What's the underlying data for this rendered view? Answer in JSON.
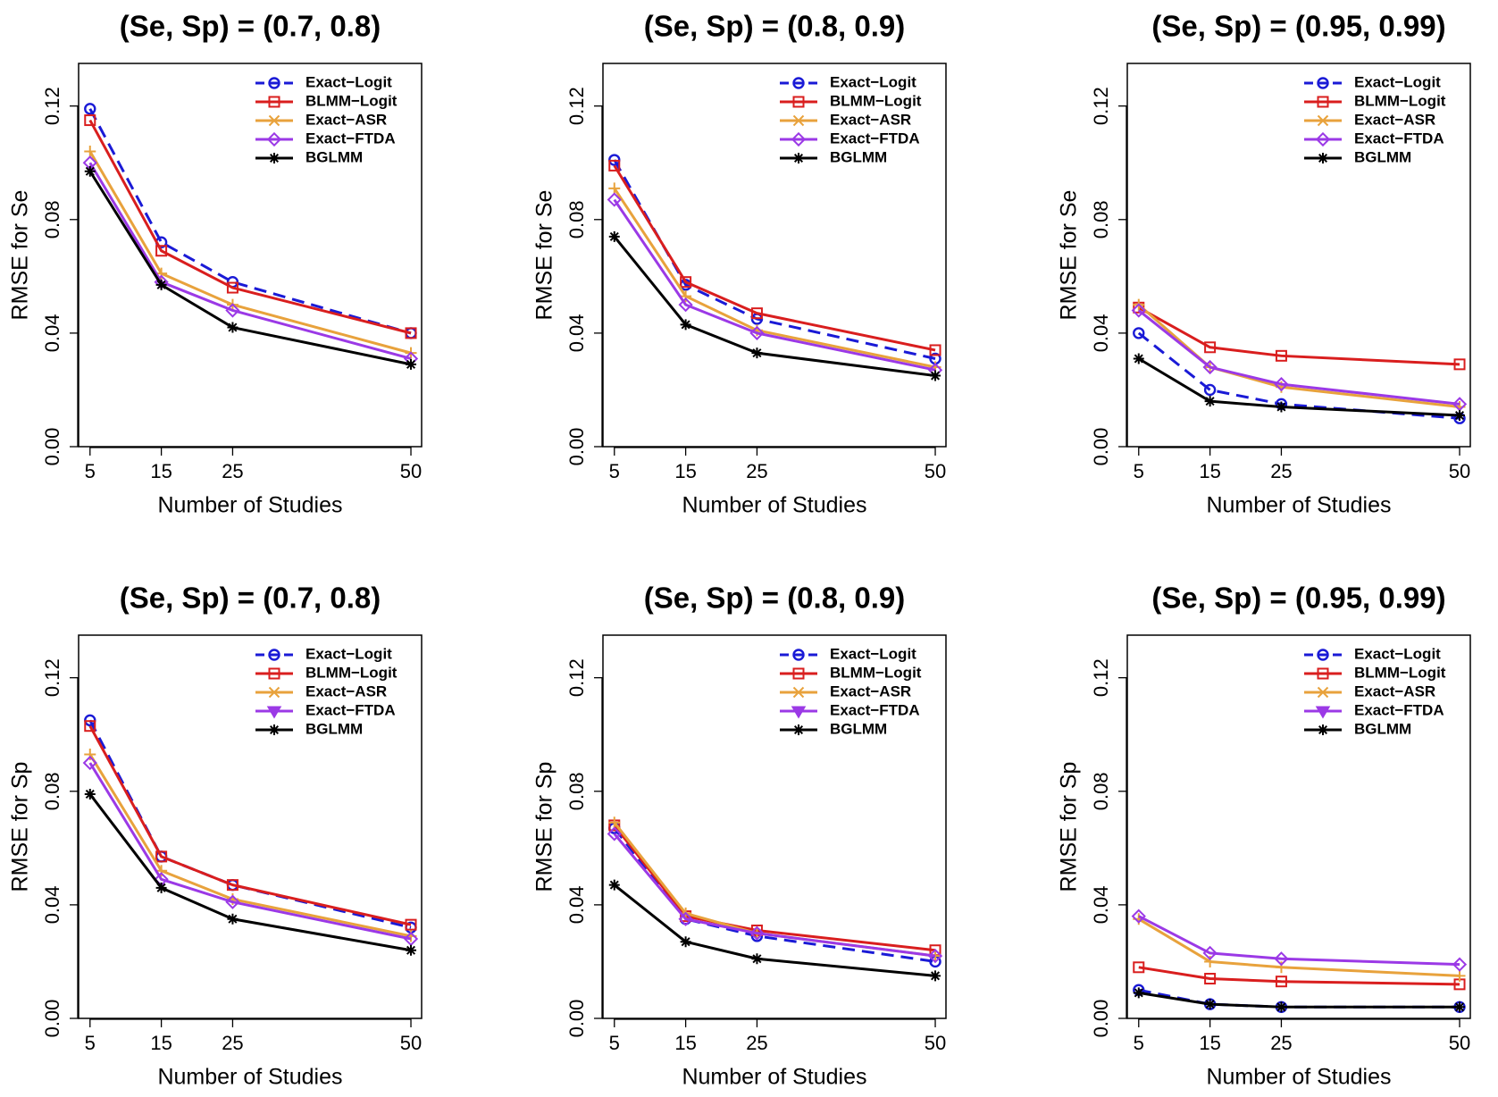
{
  "colors": {
    "exact_logit": "#1a1ad6",
    "blmm_logit": "#d91e1e",
    "exact_asr": "#e8a23c",
    "exact_ftda": "#9b39e6",
    "bglmm": "#000000"
  },
  "chart_data": [
    {
      "type": "line",
      "title": "(Se, Sp) = (0.7, 0.8)",
      "xlabel": "Number of Studies",
      "ylabel": "RMSE for Se",
      "x": [
        5,
        15,
        25,
        50
      ],
      "x_ticks": [
        "5",
        "15",
        "25",
        "50"
      ],
      "y_ticks": [
        "0.00",
        "0.04",
        "0.08",
        "0.12"
      ],
      "ylim": [
        0,
        0.135
      ],
      "legend_position": "top-right",
      "series": [
        {
          "name": "Exact−Logit",
          "color_key": "exact_logit",
          "dash": true,
          "marker": "circle",
          "legend_marker": "circle",
          "values": [
            0.119,
            0.072,
            0.058,
            0.04
          ]
        },
        {
          "name": "BLMM−Logit",
          "color_key": "blmm_logit",
          "dash": false,
          "marker": "square",
          "legend_marker": "square",
          "values": [
            0.115,
            0.069,
            0.056,
            0.04
          ]
        },
        {
          "name": "Exact−ASR",
          "color_key": "exact_asr",
          "dash": false,
          "marker": "plus",
          "legend_marker": "x",
          "values": [
            0.104,
            0.061,
            0.05,
            0.033
          ]
        },
        {
          "name": "Exact−FTDA",
          "color_key": "exact_ftda",
          "dash": false,
          "marker": "diamond",
          "legend_marker": "diamond",
          "values": [
            0.1,
            0.058,
            0.048,
            0.031
          ]
        },
        {
          "name": "BGLMM",
          "color_key": "bglmm",
          "dash": false,
          "marker": "star",
          "legend_marker": "star",
          "values": [
            0.097,
            0.057,
            0.042,
            0.029
          ]
        }
      ]
    },
    {
      "type": "line",
      "title": "(Se, Sp) = (0.8, 0.9)",
      "xlabel": "Number of Studies",
      "ylabel": "RMSE for Se",
      "x": [
        5,
        15,
        25,
        50
      ],
      "x_ticks": [
        "5",
        "15",
        "25",
        "50"
      ],
      "y_ticks": [
        "0.00",
        "0.04",
        "0.08",
        "0.12"
      ],
      "ylim": [
        0,
        0.135
      ],
      "legend_position": "top-right",
      "series": [
        {
          "name": "Exact−Logit",
          "color_key": "exact_logit",
          "dash": true,
          "marker": "circle",
          "legend_marker": "circle",
          "values": [
            0.101,
            0.057,
            0.045,
            0.031
          ]
        },
        {
          "name": "BLMM−Logit",
          "color_key": "blmm_logit",
          "dash": false,
          "marker": "square",
          "legend_marker": "square",
          "values": [
            0.099,
            0.058,
            0.047,
            0.034
          ]
        },
        {
          "name": "Exact−ASR",
          "color_key": "exact_asr",
          "dash": false,
          "marker": "plus",
          "legend_marker": "x",
          "values": [
            0.091,
            0.053,
            0.041,
            0.028
          ]
        },
        {
          "name": "Exact−FTDA",
          "color_key": "exact_ftda",
          "dash": false,
          "marker": "diamond",
          "legend_marker": "diamond",
          "values": [
            0.087,
            0.05,
            0.04,
            0.027
          ]
        },
        {
          "name": "BGLMM",
          "color_key": "bglmm",
          "dash": false,
          "marker": "star",
          "legend_marker": "star",
          "values": [
            0.074,
            0.043,
            0.033,
            0.025
          ]
        }
      ]
    },
    {
      "type": "line",
      "title": "(Se, Sp) = (0.95, 0.99)",
      "xlabel": "Number of Studies",
      "ylabel": "RMSE for Se",
      "x": [
        5,
        15,
        25,
        50
      ],
      "x_ticks": [
        "5",
        "15",
        "25",
        "50"
      ],
      "y_ticks": [
        "0.00",
        "0.04",
        "0.08",
        "0.12"
      ],
      "ylim": [
        0,
        0.135
      ],
      "legend_position": "top-right",
      "series": [
        {
          "name": "Exact−Logit",
          "color_key": "exact_logit",
          "dash": true,
          "marker": "circle",
          "legend_marker": "circle",
          "values": [
            0.04,
            0.02,
            0.015,
            0.01
          ]
        },
        {
          "name": "BLMM−Logit",
          "color_key": "blmm_logit",
          "dash": false,
          "marker": "square",
          "legend_marker": "square",
          "values": [
            0.049,
            0.035,
            0.032,
            0.029
          ]
        },
        {
          "name": "Exact−ASR",
          "color_key": "exact_asr",
          "dash": false,
          "marker": "plus",
          "legend_marker": "x",
          "values": [
            0.05,
            0.028,
            0.021,
            0.014
          ]
        },
        {
          "name": "Exact−FTDA",
          "color_key": "exact_ftda",
          "dash": false,
          "marker": "diamond",
          "legend_marker": "diamond",
          "values": [
            0.048,
            0.028,
            0.022,
            0.015
          ]
        },
        {
          "name": "BGLMM",
          "color_key": "bglmm",
          "dash": false,
          "marker": "star",
          "legend_marker": "star",
          "values": [
            0.031,
            0.016,
            0.014,
            0.011
          ]
        }
      ]
    },
    {
      "type": "line",
      "title": "(Se, Sp) = (0.7, 0.8)",
      "xlabel": "Number of Studies",
      "ylabel": "RMSE for Sp",
      "x": [
        5,
        15,
        25,
        50
      ],
      "x_ticks": [
        "5",
        "15",
        "25",
        "50"
      ],
      "y_ticks": [
        "0.00",
        "0.04",
        "0.08",
        "0.12"
      ],
      "ylim": [
        0,
        0.135
      ],
      "legend_position": "top-right",
      "series": [
        {
          "name": "Exact−Logit",
          "color_key": "exact_logit",
          "dash": true,
          "marker": "circle",
          "legend_marker": "circle",
          "values": [
            0.105,
            0.057,
            0.047,
            0.032
          ]
        },
        {
          "name": "BLMM−Logit",
          "color_key": "blmm_logit",
          "dash": false,
          "marker": "square",
          "legend_marker": "square",
          "values": [
            0.103,
            0.057,
            0.047,
            0.033
          ]
        },
        {
          "name": "Exact−ASR",
          "color_key": "exact_asr",
          "dash": false,
          "marker": "plus",
          "legend_marker": "x",
          "values": [
            0.093,
            0.052,
            0.042,
            0.029
          ]
        },
        {
          "name": "Exact−FTDA",
          "color_key": "exact_ftda",
          "dash": false,
          "marker": "diamond",
          "legend_marker": "triangle",
          "values": [
            0.09,
            0.049,
            0.041,
            0.028
          ]
        },
        {
          "name": "BGLMM",
          "color_key": "bglmm",
          "dash": false,
          "marker": "star",
          "legend_marker": "star",
          "values": [
            0.079,
            0.046,
            0.035,
            0.024
          ]
        }
      ]
    },
    {
      "type": "line",
      "title": "(Se, Sp) = (0.8, 0.9)",
      "xlabel": "Number of Studies",
      "ylabel": "RMSE for Sp",
      "x": [
        5,
        15,
        25,
        50
      ],
      "x_ticks": [
        "5",
        "15",
        "25",
        "50"
      ],
      "y_ticks": [
        "0.00",
        "0.04",
        "0.08",
        "0.12"
      ],
      "ylim": [
        0,
        0.135
      ],
      "legend_position": "top-right",
      "series": [
        {
          "name": "Exact−Logit",
          "color_key": "exact_logit",
          "dash": true,
          "marker": "circle",
          "legend_marker": "circle",
          "values": [
            0.067,
            0.035,
            0.029,
            0.02
          ]
        },
        {
          "name": "BLMM−Logit",
          "color_key": "blmm_logit",
          "dash": false,
          "marker": "square",
          "legend_marker": "square",
          "values": [
            0.068,
            0.036,
            0.031,
            0.024
          ]
        },
        {
          "name": "Exact−ASR",
          "color_key": "exact_asr",
          "dash": false,
          "marker": "plus",
          "legend_marker": "x",
          "values": [
            0.069,
            0.037,
            0.03,
            0.022
          ]
        },
        {
          "name": "Exact−FTDA",
          "color_key": "exact_ftda",
          "dash": false,
          "marker": "diamond",
          "legend_marker": "triangle",
          "values": [
            0.065,
            0.035,
            0.03,
            0.022
          ]
        },
        {
          "name": "BGLMM",
          "color_key": "bglmm",
          "dash": false,
          "marker": "star",
          "legend_marker": "star",
          "values": [
            0.047,
            0.027,
            0.021,
            0.015
          ]
        }
      ]
    },
    {
      "type": "line",
      "title": "(Se, Sp) = (0.95, 0.99)",
      "xlabel": "Number of Studies",
      "ylabel": "RMSE for Sp",
      "x": [
        5,
        15,
        25,
        50
      ],
      "x_ticks": [
        "5",
        "15",
        "25",
        "50"
      ],
      "y_ticks": [
        "0.00",
        "0.04",
        "0.08",
        "0.12"
      ],
      "ylim": [
        0,
        0.135
      ],
      "legend_position": "top-right",
      "series": [
        {
          "name": "Exact−Logit",
          "color_key": "exact_logit",
          "dash": true,
          "marker": "circle",
          "legend_marker": "circle",
          "values": [
            0.01,
            0.005,
            0.004,
            0.004
          ]
        },
        {
          "name": "BLMM−Logit",
          "color_key": "blmm_logit",
          "dash": false,
          "marker": "square",
          "legend_marker": "square",
          "values": [
            0.018,
            0.014,
            0.013,
            0.012
          ]
        },
        {
          "name": "Exact−ASR",
          "color_key": "exact_asr",
          "dash": false,
          "marker": "plus",
          "legend_marker": "x",
          "values": [
            0.035,
            0.02,
            0.018,
            0.015
          ]
        },
        {
          "name": "Exact−FTDA",
          "color_key": "exact_ftda",
          "dash": false,
          "marker": "diamond",
          "legend_marker": "triangle",
          "values": [
            0.036,
            0.023,
            0.021,
            0.019
          ]
        },
        {
          "name": "BGLMM",
          "color_key": "bglmm",
          "dash": false,
          "marker": "star",
          "legend_marker": "star",
          "values": [
            0.009,
            0.005,
            0.004,
            0.004
          ]
        }
      ]
    }
  ]
}
